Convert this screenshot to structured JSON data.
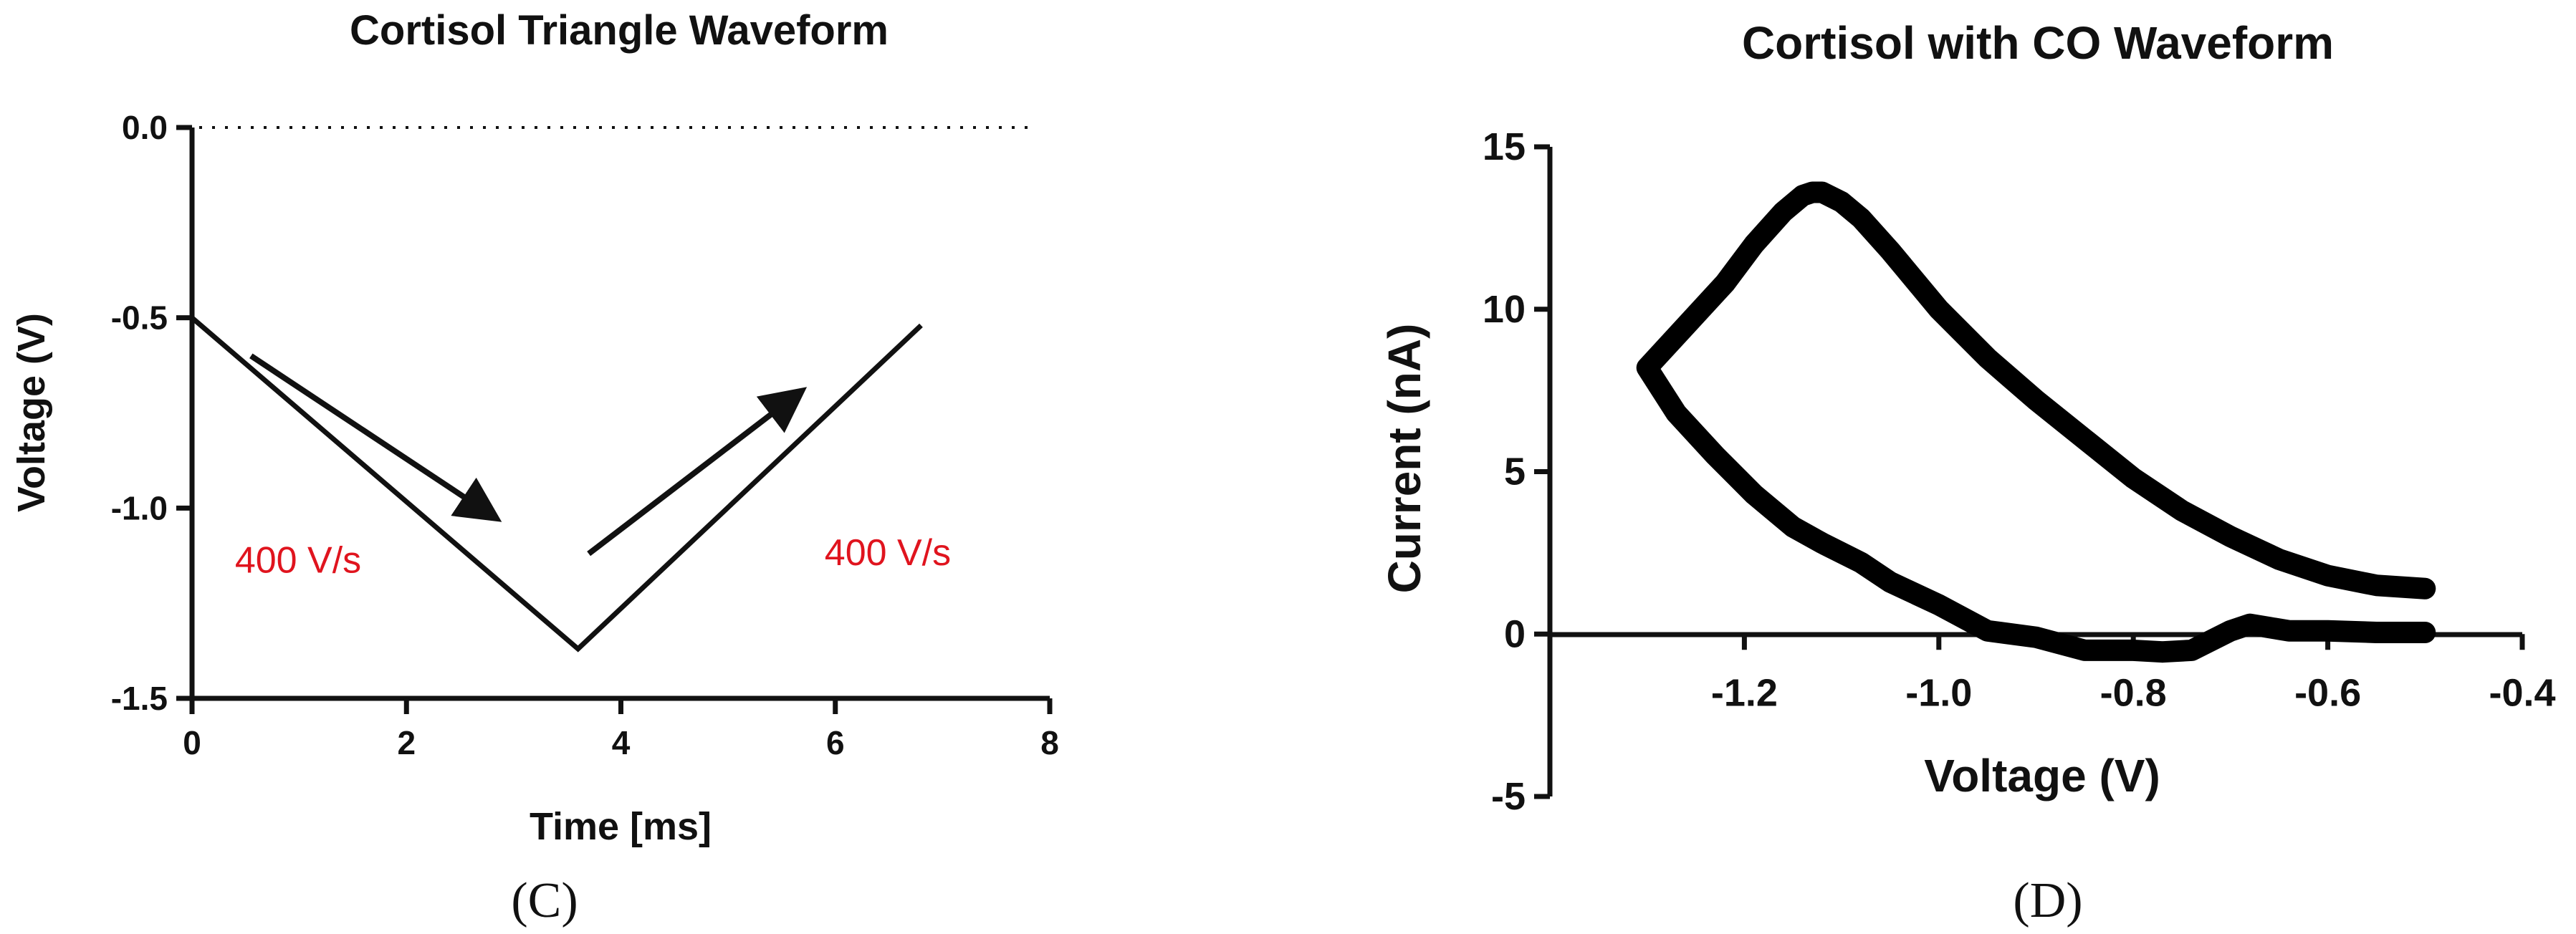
{
  "chart_data": [
    {
      "panel_label": "(C)",
      "type": "line",
      "title": "Cortisol Triangle Waveform",
      "xlabel": "Time [ms]",
      "ylabel": "Voltage (V)",
      "xlim": [
        0,
        8
      ],
      "ylim": [
        -1.5,
        0.0
      ],
      "x_ticks": [
        0,
        2,
        4,
        6,
        8
      ],
      "y_ticks": [
        0.0,
        -0.5,
        -1.0,
        -1.5
      ],
      "x_tick_labels": [
        "0",
        "2",
        "4",
        "6",
        "8"
      ],
      "y_tick_labels": [
        "0.0",
        "-0.5",
        "-1.0",
        "-1.5"
      ],
      "reference_line": {
        "y": 0.0,
        "style": "dotted"
      },
      "series": [
        {
          "x": [
            0,
            3.6,
            6.8
          ],
          "y": [
            -0.5,
            -1.37,
            -0.52
          ]
        }
      ],
      "annotations": [
        {
          "text": "400 V/s",
          "x": 0.4,
          "y": -1.17
        },
        {
          "text": "400 V/s",
          "x": 5.9,
          "y": -1.15
        }
      ],
      "arrows": [
        {
          "from": [
            0.55,
            -0.6
          ],
          "to": [
            2.8,
            -1.02
          ]
        },
        {
          "from": [
            3.7,
            -1.12
          ],
          "to": [
            5.65,
            -0.7
          ]
        }
      ],
      "grid": false,
      "colors": {
        "line": "#111111",
        "annotation": "#e0141e"
      }
    },
    {
      "panel_label": "(D)",
      "type": "line",
      "title": "Cortisol with CO Waveform",
      "xlabel": "Voltage (V)",
      "ylabel": "Current (nA)",
      "xlim": [
        -1.4,
        -0.4
      ],
      "ylim": [
        -5,
        15
      ],
      "x_ticks": [
        -1.2,
        -1.0,
        -0.8,
        -0.6,
        -0.4
      ],
      "y_ticks": [
        -5,
        0,
        5,
        10,
        15
      ],
      "x_tick_labels": [
        "-1.2",
        "-1.0",
        "-0.8",
        "-0.6",
        "-0.4"
      ],
      "y_tick_labels": [
        "-5",
        "0",
        "5",
        "10",
        "15"
      ],
      "zero_line": {
        "y": 0
      },
      "series": [
        {
          "x": [
            -0.5,
            -0.55,
            -0.6,
            -0.65,
            -0.7,
            -0.75,
            -0.8,
            -0.85,
            -0.9,
            -0.95,
            -1.0,
            -1.05,
            -1.08,
            -1.1,
            -1.12,
            -1.13,
            -1.14,
            -1.16,
            -1.19,
            -1.22,
            -1.26,
            -1.3,
            -1.27,
            -1.23,
            -1.19,
            -1.15,
            -1.12,
            -1.08,
            -1.05,
            -1.0,
            -0.95,
            -0.9,
            -0.85,
            -0.8,
            -0.77,
            -0.74,
            -0.72,
            -0.7,
            -0.68,
            -0.66,
            -0.64,
            -0.6,
            -0.55,
            -0.5
          ],
          "y": [
            1.4,
            1.5,
            1.8,
            2.3,
            3.0,
            3.8,
            4.8,
            6.0,
            7.2,
            8.5,
            10.0,
            11.8,
            12.8,
            13.3,
            13.6,
            13.6,
            13.5,
            13.0,
            12.0,
            10.8,
            9.5,
            8.2,
            6.8,
            5.5,
            4.3,
            3.3,
            2.8,
            2.2,
            1.6,
            0.9,
            0.1,
            -0.1,
            -0.5,
            -0.5,
            -0.55,
            -0.5,
            -0.2,
            0.1,
            0.3,
            0.2,
            0.1,
            0.1,
            0.05,
            0.05
          ]
        }
      ],
      "grid": false,
      "colors": {
        "line": "#000000"
      }
    }
  ]
}
